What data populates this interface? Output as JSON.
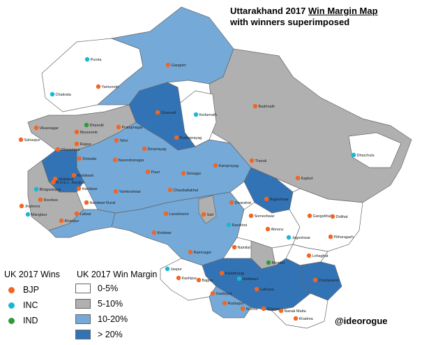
{
  "title": {
    "line1_prefix": "Uttarakhand 2017 ",
    "line1_underlined": "Win Margin Map",
    "line2": "with winners superimposed"
  },
  "legend_wins": {
    "heading": "UK 2017 Wins",
    "items": [
      {
        "label": "BJP",
        "color": "#f26522"
      },
      {
        "label": "INC",
        "color": "#1ab7d1"
      },
      {
        "label": "IND",
        "color": "#2f9a3a"
      }
    ]
  },
  "legend_margin": {
    "heading": "UK 2017 Win Margin",
    "items": [
      {
        "label": "0-5%",
        "color": "#ffffff"
      },
      {
        "label": "5-10%",
        "color": "#b0b0b0"
      },
      {
        "label": "10-20%",
        "color": "#74a9d8"
      },
      {
        "label": "> 20%",
        "color": "#3273b6"
      }
    ]
  },
  "credit": "@ideorogue",
  "constituencies": [
    {
      "name": "Purola",
      "party": "INC"
    },
    {
      "name": "Gangotri",
      "party": "BJP"
    },
    {
      "name": "Yamunotri",
      "party": "BJP"
    },
    {
      "name": "Chakrata",
      "party": "INC"
    },
    {
      "name": "Badrinath",
      "party": "BJP"
    },
    {
      "name": "Ghansali",
      "party": "BJP"
    },
    {
      "name": "Kedarnath",
      "party": "INC"
    },
    {
      "name": "Dhanolti",
      "party": "IND"
    },
    {
      "name": "Pratapnagar",
      "party": "BJP"
    },
    {
      "name": "Vikasnagar",
      "party": "BJP"
    },
    {
      "name": "Mussoorie",
      "party": "BJP"
    },
    {
      "name": "Sahaspur",
      "party": "BJP"
    },
    {
      "name": "Raipur",
      "party": "BJP"
    },
    {
      "name": "Dharampur",
      "party": "BJP"
    },
    {
      "name": "Tehri",
      "party": "BJP"
    },
    {
      "name": "Rudraprayag",
      "party": "BJP"
    },
    {
      "name": "Devprayag",
      "party": "BJP"
    },
    {
      "name": "Dharchula",
      "party": "INC"
    },
    {
      "name": "Doiwala",
      "party": "BJP"
    },
    {
      "name": "Narendranagar",
      "party": "BJP"
    },
    {
      "name": "Karnprayag",
      "party": "BJP"
    },
    {
      "name": "Tharali",
      "party": "BJP"
    },
    {
      "name": "Pauri",
      "party": "BJP"
    },
    {
      "name": "Srinagar",
      "party": "BJP"
    },
    {
      "name": "Rishikesh",
      "party": "BJP"
    },
    {
      "name": "B.H.E.L. Ranipur",
      "party": "BJP"
    },
    {
      "name": "Haridwar",
      "party": "BJP"
    },
    {
      "name": "Kapkot",
      "party": "BJP"
    },
    {
      "name": "Jwalapur",
      "party": "BJP"
    },
    {
      "name": "Bhagwanpur",
      "party": "INC"
    },
    {
      "name": "Roorkee",
      "party": "BJP"
    },
    {
      "name": "Chaubattakhal",
      "party": "BJP"
    },
    {
      "name": "Yamkeshwar",
      "party": "BJP"
    },
    {
      "name": "Haridwar Rural",
      "party": "BJP"
    },
    {
      "name": "Dwarahat",
      "party": "BJP"
    },
    {
      "name": "Bageshwar",
      "party": "BJP"
    },
    {
      "name": "Jhabrera",
      "party": "BJP"
    },
    {
      "name": "Lansdowne",
      "party": "BJP"
    },
    {
      "name": "Salt",
      "party": "BJP"
    },
    {
      "name": "Someshwar",
      "party": "BJP"
    },
    {
      "name": "Gangolihat",
      "party": "BJP"
    },
    {
      "name": "Didihat",
      "party": "BJP"
    },
    {
      "name": "Manglaur",
      "party": "INC"
    },
    {
      "name": "Laksar",
      "party": "BJP"
    },
    {
      "name": "Khanpur",
      "party": "BJP"
    },
    {
      "name": "Ranikhet",
      "party": "INC"
    },
    {
      "name": "Almora",
      "party": "BJP"
    },
    {
      "name": "Jageshwar",
      "party": "INC"
    },
    {
      "name": "Kotdwar",
      "party": "BJP"
    },
    {
      "name": "Pithoragarh",
      "party": "BJP"
    },
    {
      "name": "Nainital",
      "party": "BJP"
    },
    {
      "name": "Ramnagar",
      "party": "BJP"
    },
    {
      "name": "Lohaghat",
      "party": "BJP"
    },
    {
      "name": "Bhimtal",
      "party": "IND"
    },
    {
      "name": "Jaspur",
      "party": "INC"
    },
    {
      "name": "Kaladhungi",
      "party": "BJP"
    },
    {
      "name": "Haldwani",
      "party": "INC"
    },
    {
      "name": "Champawat",
      "party": "BJP"
    },
    {
      "name": "Kashipur",
      "party": "BJP"
    },
    {
      "name": "Bajpur",
      "party": "BJP"
    },
    {
      "name": "Lalkuwa",
      "party": "BJP"
    },
    {
      "name": "Gadarpur",
      "party": "BJP"
    },
    {
      "name": "Rudrapur",
      "party": "BJP"
    },
    {
      "name": "Kichha",
      "party": "BJP"
    },
    {
      "name": "Sitarganj",
      "party": "BJP"
    },
    {
      "name": "Nanak Matta",
      "party": "BJP"
    },
    {
      "name": "Khatima",
      "party": "BJP"
    }
  ]
}
